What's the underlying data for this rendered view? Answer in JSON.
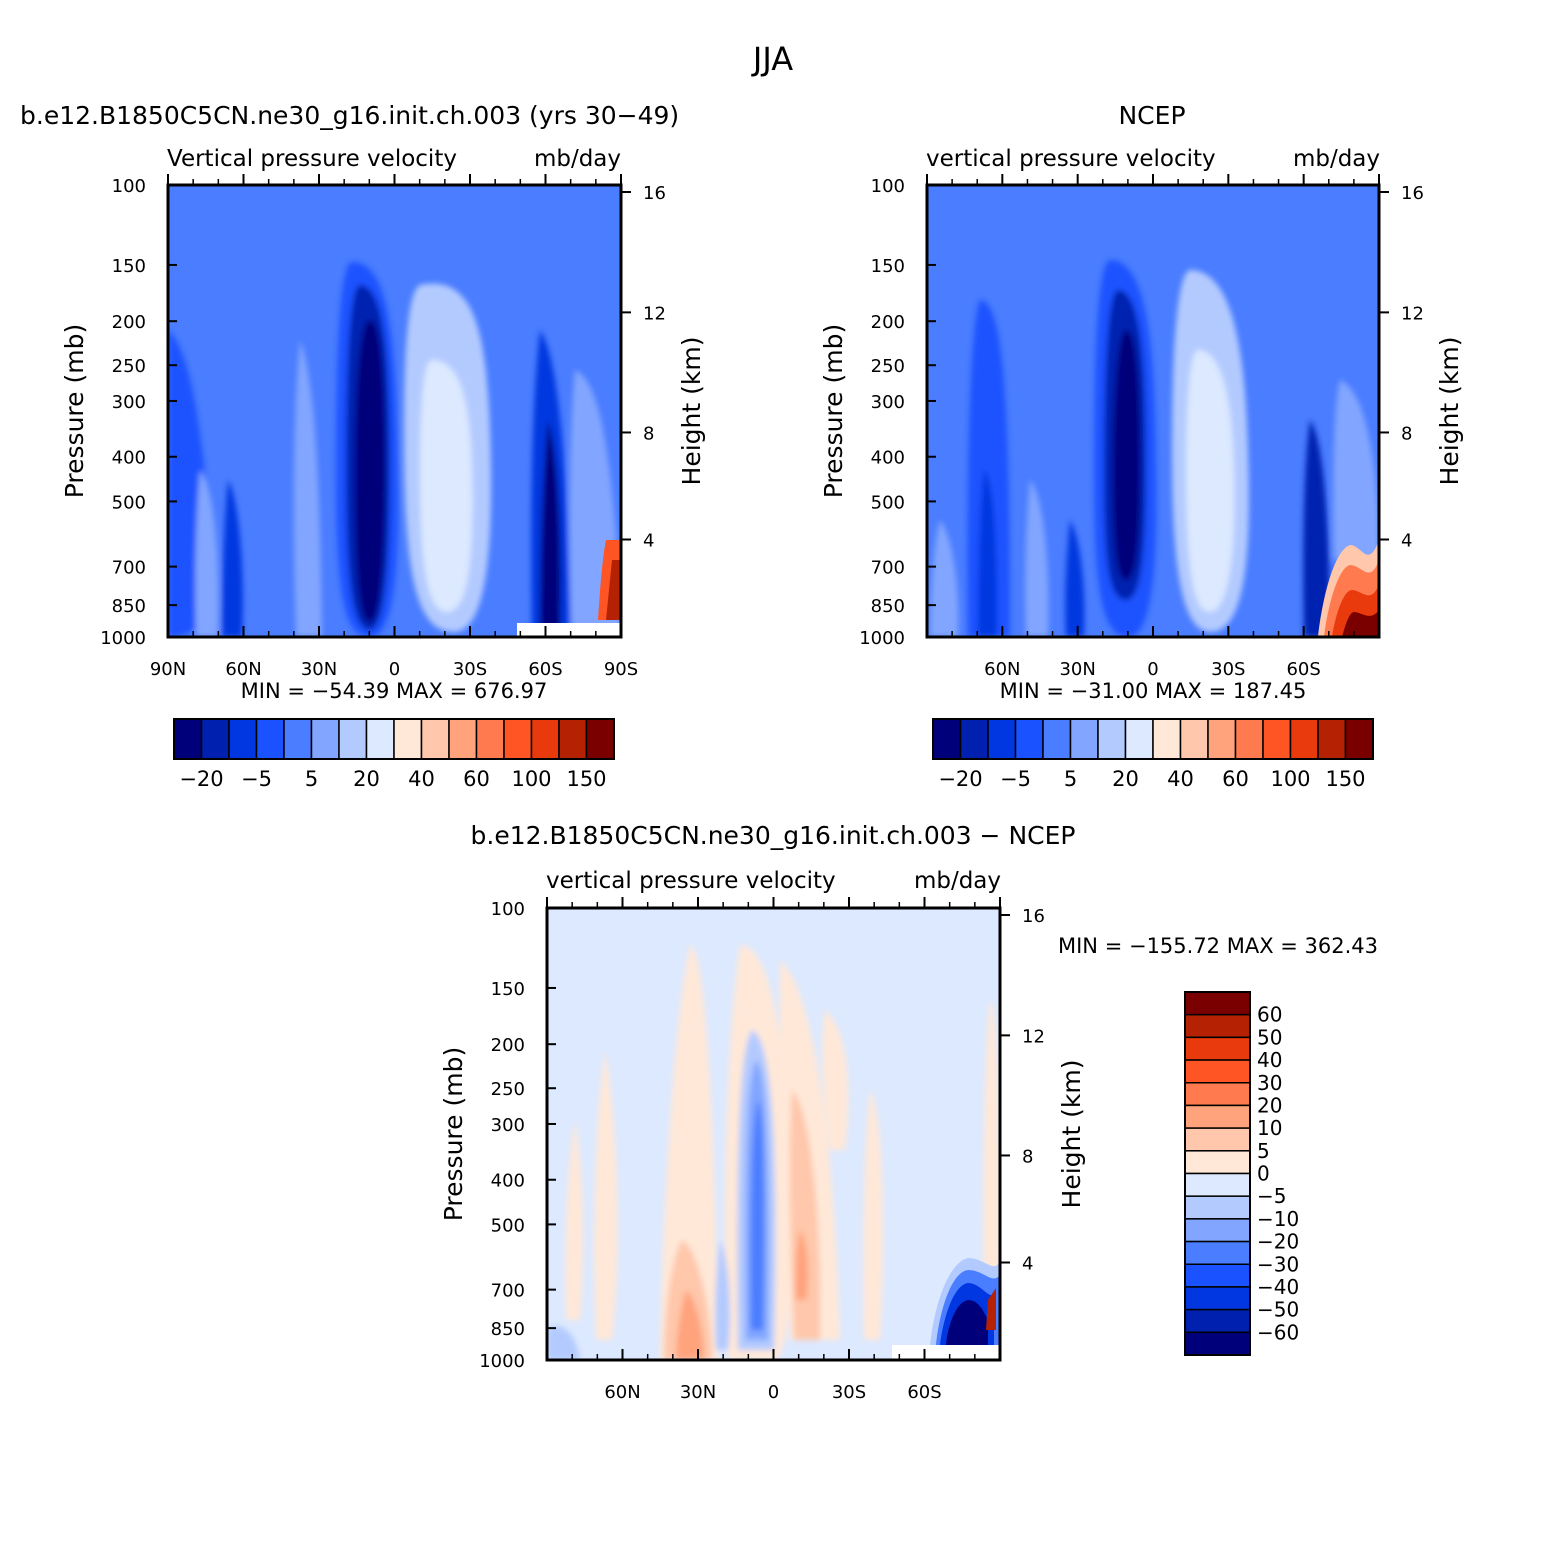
{
  "figure": {
    "title": "JJA"
  },
  "chart_data": [
    {
      "type": "heatmap",
      "title": "b.e12.B1850C5CN.ne30_g16.init.ch.003 (yrs 30−49)",
      "left_subtitle": "Vertical pressure velocity",
      "right_subtitle": "mb/day",
      "ylabel": "Pressure (mb)",
      "ylabel_right": "Height (km)",
      "x_tick_labels": [
        "90N",
        "60N",
        "30N",
        "0",
        "30S",
        "60S",
        "90S"
      ],
      "y_tick_labels": [
        "100",
        "150",
        "200",
        "250",
        "300",
        "400",
        "500",
        "700",
        "850",
        "1000"
      ],
      "y2_tick_labels": [
        "16",
        "12",
        "8",
        "4"
      ],
      "stats": "MIN = −54.39   MAX = 676.97",
      "colorbar_labels": [
        "−20",
        "−5",
        "5",
        "20",
        "40",
        "60",
        "100",
        "150"
      ],
      "levels": [
        -30,
        -20,
        -10,
        -5,
        0,
        5,
        10,
        20,
        30,
        40,
        50,
        60,
        80,
        100,
        125,
        150
      ]
    },
    {
      "type": "heatmap",
      "title": "NCEP",
      "left_subtitle": "vertical pressure velocity",
      "right_subtitle": "mb/day",
      "ylabel": "Pressure (mb)",
      "ylabel_right": "Height (km)",
      "x_tick_labels": [
        "60N",
        "30N",
        "0",
        "30S",
        "60S"
      ],
      "y_tick_labels": [
        "100",
        "150",
        "200",
        "250",
        "300",
        "400",
        "500",
        "700",
        "850",
        "1000"
      ],
      "y2_tick_labels": [
        "16",
        "12",
        "8",
        "4"
      ],
      "stats": "MIN = −31.00   MAX = 187.45",
      "colorbar_labels": [
        "−20",
        "−5",
        "5",
        "20",
        "40",
        "60",
        "100",
        "150"
      ]
    },
    {
      "type": "heatmap",
      "title": "b.e12.B1850C5CN.ne30_g16.init.ch.003 − NCEP",
      "left_subtitle": "vertical pressure velocity",
      "right_subtitle": "mb/day",
      "ylabel": "Pressure (mb)",
      "ylabel_right": "Height (km)",
      "x_tick_labels": [
        "60N",
        "30N",
        "0",
        "30S",
        "60S"
      ],
      "y_tick_labels": [
        "100",
        "150",
        "200",
        "250",
        "300",
        "400",
        "500",
        "700",
        "850",
        "1000"
      ],
      "y2_tick_labels": [
        "16",
        "12",
        "8",
        "4"
      ],
      "stats": "MIN = −155.72   MAX = 362.43",
      "colorbar_labels": [
        "60",
        "50",
        "40",
        "30",
        "20",
        "10",
        "5",
        "0",
        "−5",
        "−10",
        "−20",
        "−30",
        "−40",
        "−50",
        "−60"
      ]
    }
  ],
  "colors": {
    "abs_palette": [
      "#00007a",
      "#0020b0",
      "#0037e0",
      "#1a52ff",
      "#4a7dff",
      "#82a6ff",
      "#b3caff",
      "#dce9ff",
      "#ffe8d8",
      "#ffc7ab",
      "#ffa37c",
      "#ff7a4e",
      "#ff5424",
      "#e83a0c",
      "#b52203",
      "#7a0000"
    ],
    "diff_palette": [
      "#7a0000",
      "#b52203",
      "#e83a0c",
      "#ff5424",
      "#ff7a4e",
      "#ffa37c",
      "#ffc7ab",
      "#ffe8d8",
      "#dce9ff",
      "#b3caff",
      "#82a6ff",
      "#4a7dff",
      "#1a52ff",
      "#0037e0",
      "#0020b0",
      "#00007a"
    ]
  }
}
